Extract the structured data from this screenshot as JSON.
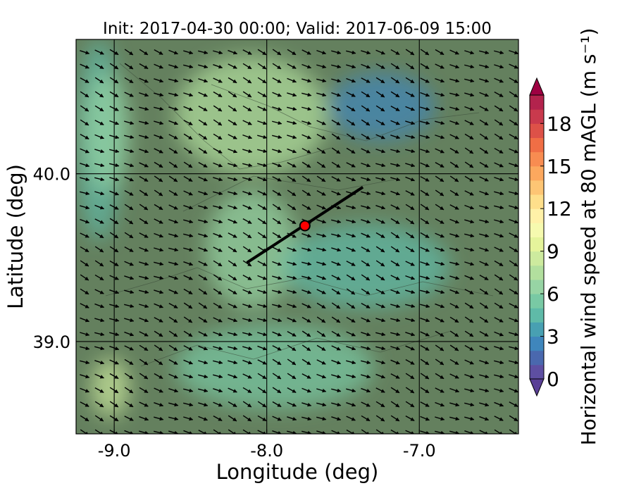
{
  "chart_data": {
    "type": "heatmap",
    "title": "Init: 2017-04-30 00:00; Valid: 2017-06-09 15:00",
    "xlabel": "Longitude (deg)",
    "ylabel": "Latitude (deg)",
    "xlim": [
      -9.25,
      -6.35
    ],
    "ylim": [
      38.45,
      40.8
    ],
    "grid": true,
    "x_ticks": [
      {
        "value": -9.0,
        "label": "-9.0"
      },
      {
        "value": -8.0,
        "label": "-8.0"
      },
      {
        "value": -7.0,
        "label": "-7.0"
      }
    ],
    "y_ticks": [
      {
        "value": 39.0,
        "label": "39.0"
      },
      {
        "value": 40.0,
        "label": "40.0"
      }
    ],
    "colorbar": {
      "label": "Horizontal wind speed at 80 mAGL (m s⁻¹)",
      "min": 0,
      "max": 20,
      "levels": [
        0,
        1,
        2,
        3,
        4,
        5,
        6,
        7,
        8,
        9,
        10,
        11,
        12,
        13,
        14,
        15,
        16,
        17,
        18,
        19,
        20
      ],
      "colors": [
        "#5e4fa2",
        "#4a68ae",
        "#3f86bc",
        "#48a0b2",
        "#5fbaa8",
        "#79c9a4",
        "#97d4a4",
        "#b2df9e",
        "#cdea9e",
        "#e5f49b",
        "#f6faaf",
        "#fff1a8",
        "#fedf8b",
        "#fdc574",
        "#fca85e",
        "#f88c51",
        "#f06e45",
        "#dd5148",
        "#c93a4d",
        "#b3234d",
        "#9e0142"
      ],
      "tick_labels": [
        {
          "value": 0,
          "label": "0"
        },
        {
          "value": 3,
          "label": "3"
        },
        {
          "value": 6,
          "label": "6"
        },
        {
          "value": 9,
          "label": "9"
        },
        {
          "value": 12,
          "label": "12"
        },
        {
          "value": 15,
          "label": "15"
        },
        {
          "value": 18,
          "label": "18"
        }
      ],
      "extend": "both"
    },
    "wind_direction": "from northwest (arrows pointing southeast)",
    "field_regions": [
      {
        "lon": [
          -9.25,
          -8.95
        ],
        "lat": [
          39.6,
          40.8
        ],
        "speed": 4.0
      },
      {
        "lon": [
          -9.2,
          -8.9
        ],
        "lat": [
          39.9,
          40.6
        ],
        "speed": 6.5
      },
      {
        "lon": [
          -9.15,
          -8.9
        ],
        "lat": [
          38.55,
          38.9
        ],
        "speed": 8.5
      },
      {
        "lon": [
          -8.6,
          -7.6
        ],
        "lat": [
          40.0,
          40.7
        ],
        "speed": 7.5
      },
      {
        "lon": [
          -7.6,
          -6.9
        ],
        "lat": [
          40.2,
          40.6
        ],
        "speed": 2.0
      },
      {
        "lon": [
          -8.4,
          -7.8
        ],
        "lat": [
          39.2,
          39.9
        ],
        "speed": 6.5
      },
      {
        "lon": [
          -7.9,
          -6.8
        ],
        "lat": [
          39.2,
          39.7
        ],
        "speed": 4.5
      },
      {
        "lon": [
          -8.6,
          -7.3
        ],
        "lat": [
          38.6,
          39.1
        ],
        "speed": 5.5
      }
    ],
    "transect": {
      "start": [
        -8.13,
        39.47
      ],
      "end": [
        -7.37,
        39.92
      ]
    },
    "site_marker": {
      "lon": -7.75,
      "lat": 39.69,
      "color": "#ff0000"
    }
  }
}
